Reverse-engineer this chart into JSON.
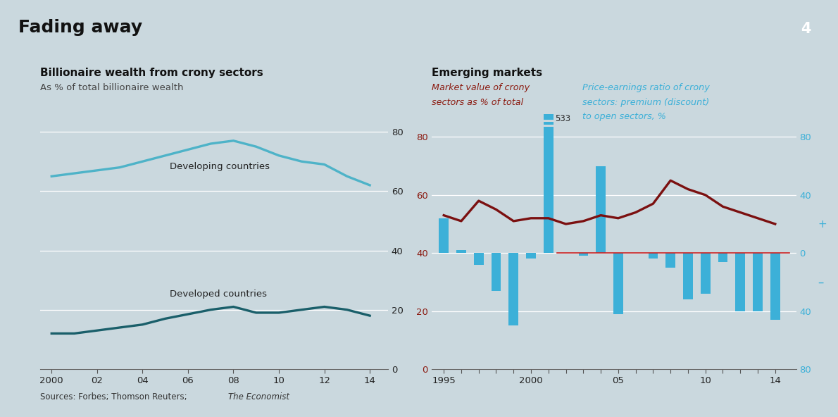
{
  "bg_color": "#cad8de",
  "main_title": "Fading away",
  "page_num": "4",
  "left_title": "Billionaire wealth from crony sectors",
  "left_subtitle": "As % of total billionaire wealth",
  "left_years": [
    2000,
    2001,
    2002,
    2003,
    2004,
    2005,
    2006,
    2007,
    2008,
    2009,
    2010,
    2011,
    2012,
    2013,
    2014
  ],
  "developing": [
    65,
    66,
    67,
    68,
    70,
    72,
    74,
    76,
    77,
    75,
    72,
    70,
    69,
    65,
    62
  ],
  "developed": [
    12,
    12,
    13,
    14,
    15,
    17,
    18.5,
    20,
    21,
    19,
    19,
    20,
    21,
    20,
    18
  ],
  "developing_color": "#4eb3c8",
  "developed_color": "#1a5f6a",
  "right_title": "Emerging markets",
  "right_ylabel_left_line1": "Market value of crony",
  "right_ylabel_left_line2": "sectors as % of total",
  "right_ylabel_right_line1": "Price-earnings ratio of crony",
  "right_ylabel_right_line2": "sectors: premium (discount)",
  "right_ylabel_right_line3": "to open sectors, %",
  "right_label_left_color": "#8b1a10",
  "right_label_right_color": "#3cb0d8",
  "right_years": [
    1995,
    1996,
    1997,
    1998,
    1999,
    2000,
    2001,
    2002,
    2003,
    2004,
    2005,
    2006,
    2007,
    2008,
    2009,
    2010,
    2011,
    2012,
    2013,
    2014
  ],
  "bar_values": [
    52,
    41,
    36,
    27,
    15,
    38,
    88,
    40,
    39,
    70,
    19,
    40,
    38,
    35,
    24,
    26,
    37,
    20,
    20,
    17
  ],
  "line_values": [
    53,
    51,
    58,
    55,
    51,
    52,
    52,
    50,
    51,
    53,
    52,
    54,
    57,
    65,
    62,
    60,
    56,
    54,
    52,
    50
  ],
  "bar_color": "#3cb0d8",
  "line_color": "#7b1010",
  "zero_line_color": "#cc2222",
  "bar_zero": 40,
  "special_bar_year": 2001,
  "special_bar_label": "533",
  "special_bar_clipped": 88,
  "right_xlim": [
    1994.3,
    2015.2
  ],
  "left_xlim": [
    1999.5,
    2014.8
  ],
  "sources_plain": "Sources: Forbes; Thomson Reuters; ",
  "sources_italic": "The Economist"
}
